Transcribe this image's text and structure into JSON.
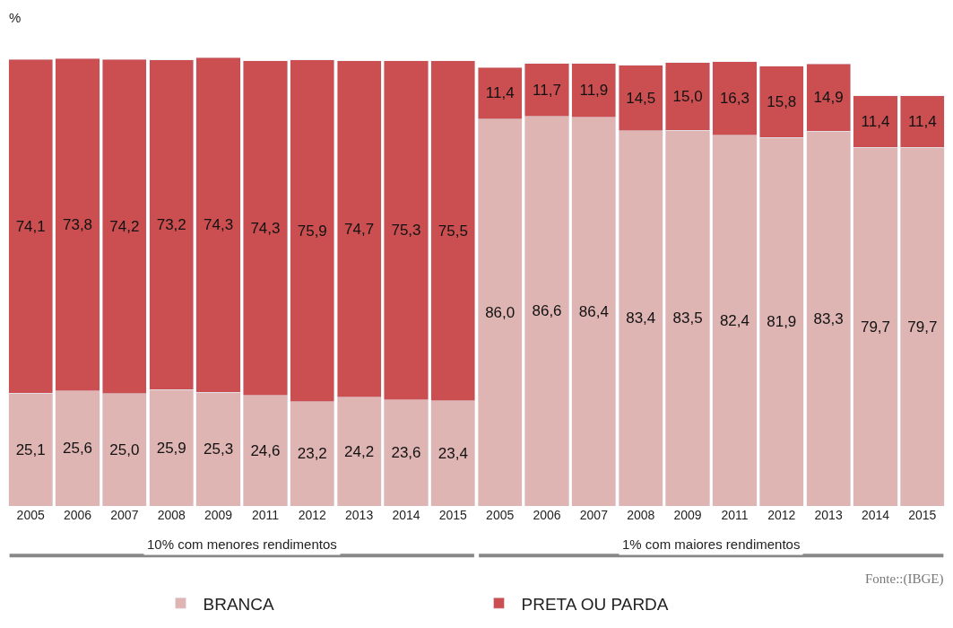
{
  "chart_data": {
    "type": "bar",
    "stacked": true,
    "ylabel": "%",
    "legend": "bottom",
    "categories": [
      "2005",
      "2006",
      "2007",
      "2008",
      "2009",
      "2011",
      "2012",
      "2013",
      "2014",
      "2015",
      "2005",
      "2006",
      "2007",
      "2008",
      "2009",
      "2011",
      "2012",
      "2013",
      "2014",
      "2015"
    ],
    "series": [
      {
        "name": "BRANCA",
        "color": "#dfb5b4",
        "values": [
          25.1,
          25.6,
          25.0,
          25.9,
          25.3,
          24.6,
          23.2,
          24.2,
          23.6,
          23.4,
          86.0,
          86.6,
          86.4,
          83.4,
          83.5,
          82.4,
          81.9,
          83.3,
          79.7,
          79.7
        ],
        "value_labels": [
          "25,1",
          "25,6",
          "25,0",
          "25,9",
          "25,3",
          "24,6",
          "23,2",
          "24,2",
          "23,6",
          "23,4",
          "86,0",
          "86,6",
          "86,4",
          "83,4",
          "83,5",
          "82,4",
          "81,9",
          "83,3",
          "79,7",
          "79,7"
        ]
      },
      {
        "name": "PRETA OU PARDA",
        "color": "#cb4f50",
        "values": [
          74.1,
          73.8,
          74.2,
          73.2,
          74.3,
          74.3,
          75.9,
          74.7,
          75.3,
          75.5,
          11.4,
          11.7,
          11.9,
          14.5,
          15.0,
          16.3,
          15.8,
          14.9,
          11.4,
          11.4
        ],
        "value_labels": [
          "74,1",
          "73,8",
          "74,2",
          "73,2",
          "74,3",
          "74,3",
          "75,9",
          "74,7",
          "75,3",
          "75,5",
          "11,4",
          "11,7",
          "11,9",
          "14,5",
          "15,0",
          "16,3",
          "15,8",
          "14,9",
          "11,4",
          "11,4"
        ]
      }
    ],
    "annotations": [
      "10% com menores rendimentos",
      "1% com maiores rendimentos",
      "Fonte::(IBGE)"
    ]
  }
}
